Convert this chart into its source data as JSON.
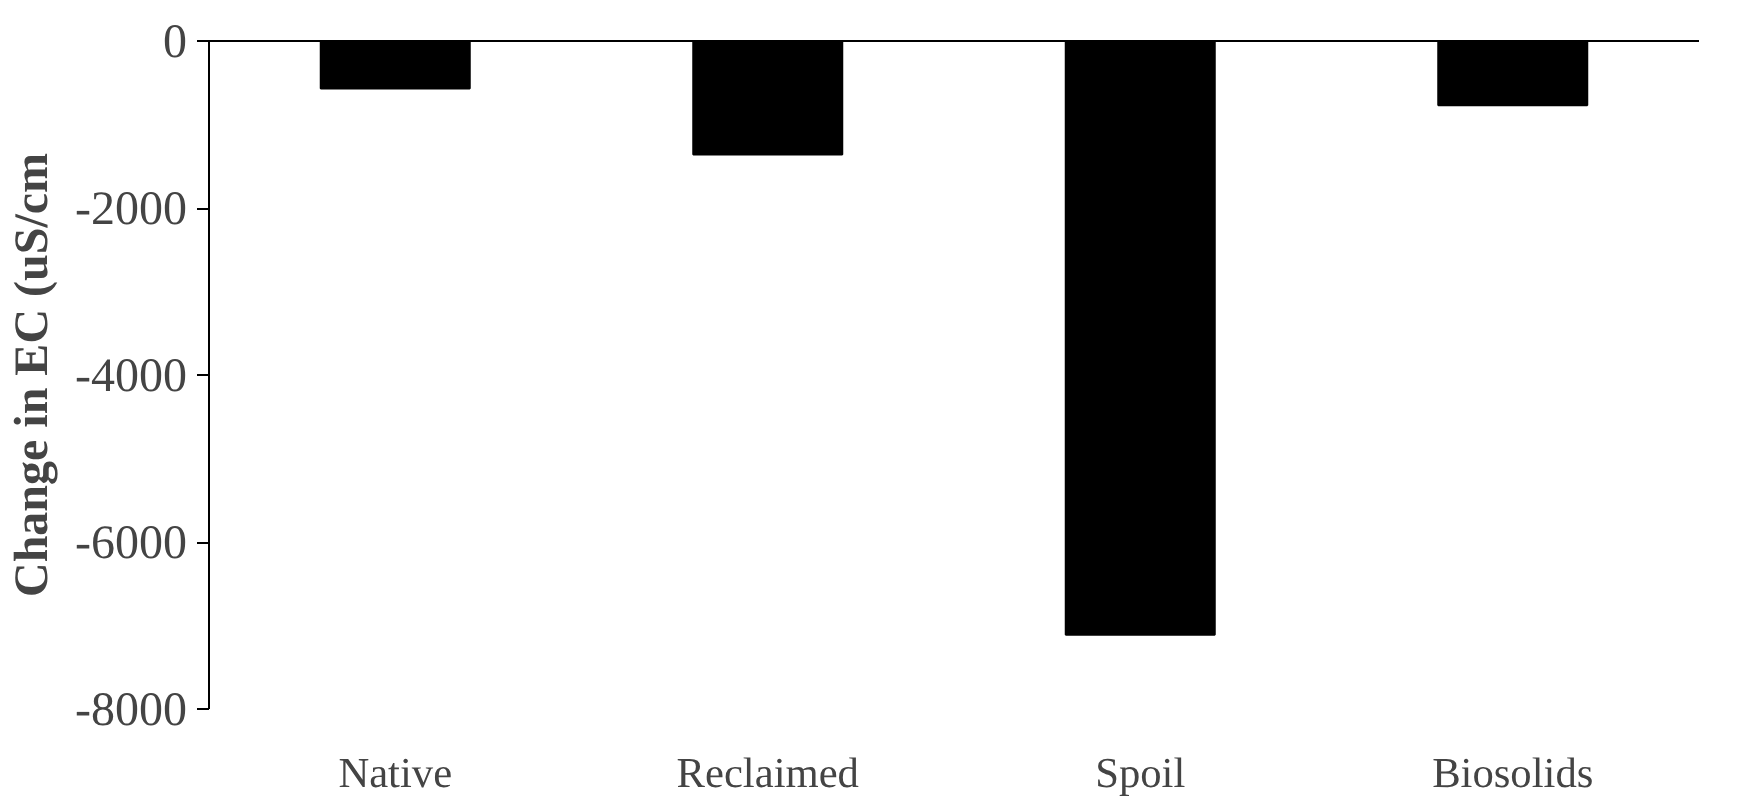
{
  "chart_data": {
    "type": "bar",
    "ylabel": "Change in EC (uS/cm",
    "categories": [
      "Native",
      "Reclaimed",
      "Spoil",
      "Biosolids"
    ],
    "values": [
      -570,
      -1360,
      -7110,
      -770
    ],
    "color": "#000000",
    "ylim": [
      -8000,
      0
    ],
    "yticks": [
      -8000,
      -6000,
      -4000,
      -2000,
      0
    ],
    "grid": false
  }
}
